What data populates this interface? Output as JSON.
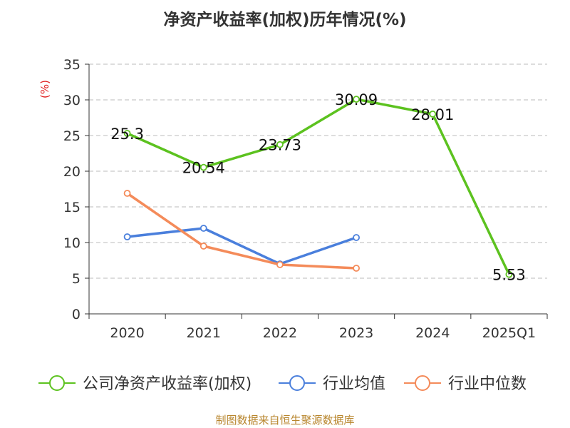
{
  "chart_data": {
    "type": "line",
    "title": "净资产收益率(加权)历年情况(%)",
    "ylabel": "(%)",
    "categories": [
      "2020",
      "2021",
      "2022",
      "2023",
      "2024",
      "2025Q1"
    ],
    "ylim": [
      0,
      35
    ],
    "yticks": [
      0,
      5,
      10,
      15,
      20,
      25,
      30,
      35
    ],
    "grid": true,
    "legend_position": "bottom",
    "series": [
      {
        "name": "公司净资产收益率(加权)",
        "color": "#5cc21f",
        "values": [
          25.3,
          20.54,
          23.73,
          30.09,
          28.01,
          5.53
        ],
        "labels": [
          "25.3",
          "20.54",
          "23.73",
          "30.09",
          "28.01",
          "5.53"
        ]
      },
      {
        "name": "行业均值",
        "color": "#4a7fdc",
        "values": [
          10.8,
          12.0,
          7.0,
          10.7,
          null,
          null
        ]
      },
      {
        "name": "行业中位数",
        "color": "#f48b5a",
        "values": [
          16.9,
          9.5,
          6.9,
          6.4,
          null,
          null
        ]
      }
    ]
  },
  "footer": "制图数据来自恒生聚源数据库"
}
